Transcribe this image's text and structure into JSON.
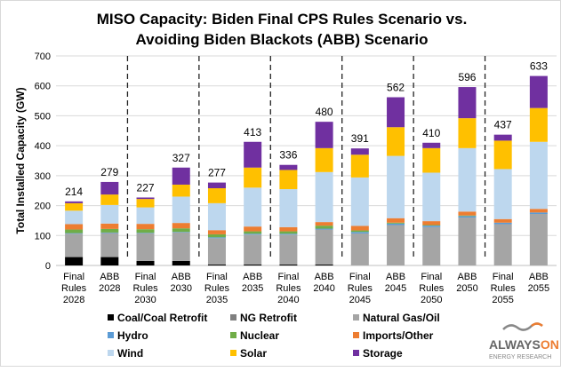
{
  "chart_data": {
    "type": "bar",
    "stacked": true,
    "title": [
      "MISO Capacity: Biden Final CPS Rules Scenario vs.",
      "Avoiding Biden Blackots (ABB) Scenario"
    ],
    "ylabel": "Total Installed Capacity (GW)",
    "xlabel": "",
    "ylim": [
      0,
      700
    ],
    "yticks": [
      "0",
      "100",
      "200",
      "300",
      "400",
      "500",
      "600",
      "700"
    ],
    "grid": true,
    "legend_position": "bottom",
    "categories": [
      [
        "Final",
        "Rules",
        "2028"
      ],
      [
        "ABB",
        "2028"
      ],
      [
        "Final",
        "Rules",
        "2030"
      ],
      [
        "ABB",
        "2030"
      ],
      [
        "Final",
        "Rules",
        "2035"
      ],
      [
        "ABB",
        "2035"
      ],
      [
        "Final",
        "Rules",
        "2040"
      ],
      [
        "ABB",
        "2040"
      ],
      [
        "Final",
        "Rules",
        "2045"
      ],
      [
        "ABB",
        "2045"
      ],
      [
        "Final",
        "Rules",
        "2050"
      ],
      [
        "ABB",
        "2050"
      ],
      [
        "Final",
        "Rules",
        "2055"
      ],
      [
        "ABB",
        "2055"
      ]
    ],
    "totals": [
      "214",
      "279",
      "227",
      "327",
      "277",
      "413",
      "336",
      "480",
      "391",
      "562",
      "410",
      "596",
      "437",
      "633"
    ],
    "series": [
      {
        "name": "Coal/Coal Retrofit",
        "color": "#000000",
        "values": [
          28,
          28,
          15,
          15,
          3,
          3,
          3,
          3,
          0,
          0,
          0,
          0,
          0,
          0
        ]
      },
      {
        "name": "NG Retrofit",
        "color": "#7f7f7f",
        "values": [
          0,
          0,
          0,
          0,
          0,
          0,
          0,
          0,
          0,
          0,
          0,
          0,
          0,
          0
        ]
      },
      {
        "name": "Natural Gas/Oil",
        "color": "#a5a5a5",
        "values": [
          78,
          80,
          92,
          95,
          88,
          100,
          100,
          117,
          107,
          135,
          128,
          160,
          138,
          172
        ]
      },
      {
        "name": "Hydro",
        "color": "#5b9bd5",
        "values": [
          2,
          2,
          2,
          2,
          3,
          3,
          3,
          3,
          5,
          5,
          5,
          5,
          5,
          5
        ]
      },
      {
        "name": "Nuclear",
        "color": "#70ad47",
        "values": [
          12,
          12,
          12,
          12,
          10,
          8,
          8,
          10,
          5,
          3,
          2,
          2,
          0,
          0
        ]
      },
      {
        "name": "Imports/Other",
        "color": "#ed7d31",
        "values": [
          18,
          18,
          18,
          18,
          14,
          16,
          14,
          12,
          15,
          15,
          13,
          13,
          12,
          12
        ]
      },
      {
        "name": "Wind",
        "color": "#bdd7ee",
        "values": [
          45,
          62,
          55,
          88,
          90,
          130,
          127,
          167,
          162,
          208,
          162,
          212,
          167,
          224
        ]
      },
      {
        "name": "Solar",
        "color": "#ffc000",
        "values": [
          25,
          35,
          28,
          40,
          50,
          67,
          64,
          80,
          76,
          96,
          82,
          100,
          95,
          113
        ]
      },
      {
        "name": "Storage",
        "color": "#7030a0",
        "values": [
          6,
          42,
          5,
          57,
          19,
          86,
          17,
          88,
          21,
          100,
          18,
          104,
          20,
          107
        ]
      }
    ]
  },
  "logo": {
    "brand": "ALWAYSON",
    "sub": "ENERGY RESEARCH"
  }
}
